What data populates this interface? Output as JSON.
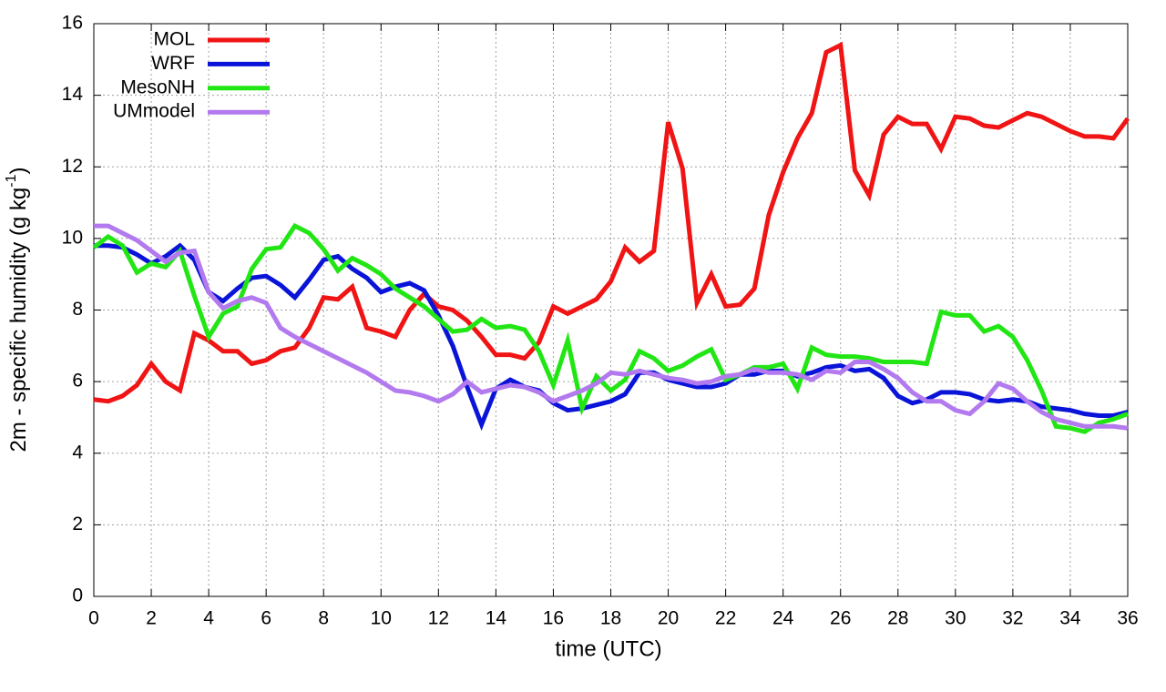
{
  "chart_data": {
    "type": "line",
    "x_label": "time (UTC)",
    "y_label": "2m - specific humidity (g kg",
    "y_label_superscript": "-1",
    "y_label_end": ")",
    "xlim": [
      0,
      36
    ],
    "ylim": [
      0,
      16
    ],
    "xticks": [
      0,
      2,
      4,
      6,
      8,
      10,
      12,
      14,
      16,
      18,
      20,
      22,
      24,
      26,
      28,
      30,
      32,
      34,
      36
    ],
    "yticks": [
      0,
      2,
      4,
      6,
      8,
      10,
      12,
      14,
      16
    ],
    "grid": true,
    "legend": "top-left",
    "x": [
      0,
      0.5,
      1,
      1.5,
      2,
      2.5,
      3,
      3.5,
      4,
      4.5,
      5,
      5.5,
      6,
      6.5,
      7,
      7.5,
      8,
      8.5,
      9,
      9.5,
      10,
      10.5,
      11,
      11.5,
      12,
      12.5,
      13,
      13.5,
      14,
      14.5,
      15,
      15.5,
      16,
      16.5,
      17,
      17.5,
      18,
      18.5,
      19,
      19.5,
      20,
      20.5,
      21,
      21.5,
      22,
      22.5,
      23,
      23.5,
      24,
      24.5,
      25,
      25.5,
      26,
      26.5,
      27,
      27.5,
      28,
      28.5,
      29,
      29.5,
      30,
      30.5,
      31,
      31.5,
      32,
      32.5,
      33,
      33.5,
      34,
      34.5,
      35,
      35.5,
      36
    ],
    "series": [
      {
        "name": "MOL",
        "color": "#f01414",
        "values": [
          5.5,
          5.45,
          5.6,
          5.9,
          6.5,
          6.0,
          5.75,
          7.35,
          7.15,
          6.85,
          6.85,
          6.5,
          6.6,
          6.85,
          6.95,
          7.5,
          8.35,
          8.3,
          8.65,
          7.5,
          7.4,
          7.25,
          8.0,
          8.45,
          8.1,
          8.0,
          7.7,
          7.25,
          6.75,
          6.75,
          6.65,
          7.1,
          8.1,
          7.9,
          8.1,
          8.3,
          8.8,
          9.75,
          9.35,
          9.65,
          13.25,
          11.95,
          8.2,
          9.0,
          8.1,
          8.15,
          8.6,
          10.65,
          11.85,
          12.8,
          13.5,
          15.2,
          15.4,
          11.9,
          11.2,
          12.9,
          13.4,
          13.2,
          13.2,
          12.5,
          13.4,
          13.35,
          13.15,
          13.1,
          13.3,
          13.5,
          13.4,
          13.2,
          13.0,
          12.85,
          12.85,
          12.8,
          13.35
        ]
      },
      {
        "name": "WRF",
        "color": "#0a14d8",
        "values": [
          9.8,
          9.8,
          9.75,
          9.55,
          9.3,
          9.5,
          9.8,
          9.4,
          8.5,
          8.25,
          8.6,
          8.9,
          8.95,
          8.7,
          8.35,
          8.85,
          9.4,
          9.5,
          9.15,
          8.9,
          8.5,
          8.65,
          8.75,
          8.55,
          7.85,
          7.0,
          5.85,
          4.8,
          5.8,
          6.05,
          5.85,
          5.75,
          5.4,
          5.2,
          5.25,
          5.35,
          5.45,
          5.65,
          6.25,
          6.25,
          6.05,
          5.95,
          5.85,
          5.85,
          5.95,
          6.2,
          6.2,
          6.3,
          6.3,
          6.15,
          6.25,
          6.4,
          6.45,
          6.3,
          6.35,
          6.1,
          5.6,
          5.4,
          5.5,
          5.7,
          5.7,
          5.65,
          5.5,
          5.45,
          5.5,
          5.45,
          5.3,
          5.25,
          5.2,
          5.1,
          5.05,
          5.05,
          5.15
        ]
      },
      {
        "name": "MesoNH",
        "color": "#22e614",
        "values": [
          9.75,
          10.05,
          9.8,
          9.05,
          9.3,
          9.2,
          9.65,
          8.4,
          7.25,
          7.9,
          8.1,
          9.15,
          9.7,
          9.75,
          10.35,
          10.15,
          9.7,
          9.1,
          9.45,
          9.25,
          9.0,
          8.6,
          8.35,
          8.1,
          7.75,
          7.4,
          7.45,
          7.75,
          7.5,
          7.55,
          7.45,
          6.85,
          5.9,
          7.15,
          5.25,
          6.15,
          5.75,
          6.05,
          6.85,
          6.65,
          6.3,
          6.45,
          6.7,
          6.9,
          6.05,
          6.2,
          6.4,
          6.4,
          6.5,
          5.8,
          6.95,
          6.75,
          6.7,
          6.7,
          6.65,
          6.55,
          6.55,
          6.55,
          6.5,
          7.95,
          7.85,
          7.85,
          7.4,
          7.55,
          7.25,
          6.6,
          5.75,
          4.75,
          4.7,
          4.6,
          4.85,
          4.95,
          5.1
        ]
      },
      {
        "name": "UMmodel",
        "color": "#b27aee",
        "values": [
          10.35,
          10.35,
          10.15,
          9.95,
          9.65,
          9.35,
          9.6,
          9.65,
          8.5,
          8.05,
          8.25,
          8.35,
          8.2,
          7.5,
          7.25,
          7.05,
          6.85,
          6.65,
          6.45,
          6.25,
          6.0,
          5.75,
          5.7,
          5.6,
          5.45,
          5.65,
          6.0,
          5.7,
          5.8,
          5.9,
          5.85,
          5.7,
          5.45,
          5.6,
          5.75,
          5.95,
          6.25,
          6.2,
          6.3,
          6.2,
          6.1,
          6.05,
          5.95,
          6.0,
          6.15,
          6.2,
          6.35,
          6.25,
          6.25,
          6.2,
          6.05,
          6.3,
          6.25,
          6.55,
          6.55,
          6.35,
          6.1,
          5.7,
          5.45,
          5.45,
          5.2,
          5.1,
          5.45,
          5.95,
          5.8,
          5.45,
          5.15,
          4.95,
          4.85,
          4.75,
          4.75,
          4.75,
          4.7
        ]
      }
    ]
  }
}
